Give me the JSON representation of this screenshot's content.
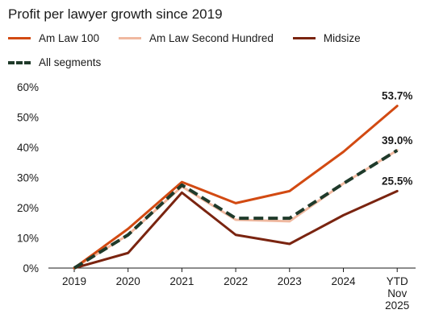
{
  "chart_data": {
    "type": "line",
    "title": "Profit per lawyer growth since 2019",
    "categories": [
      "2019",
      "2020",
      "2021",
      "2022",
      "2023",
      "2024",
      "YTD\nNov\n2025"
    ],
    "ylim": [
      0,
      60
    ],
    "yticks": [
      "0%",
      "10%",
      "20%",
      "30%",
      "40%",
      "50%",
      "60%"
    ],
    "series": [
      {
        "name": "Am Law 100",
        "values": [
          0,
          13,
          28.5,
          21.5,
          25.5,
          38.5,
          53.7
        ],
        "color": "#d24a12",
        "dash": false
      },
      {
        "name": "Am Law Second Hundred",
        "values": [
          0,
          11,
          27,
          16,
          15.5,
          28,
          39.0
        ],
        "color": "#f0b9a0",
        "dash": false
      },
      {
        "name": "Midsize",
        "values": [
          0,
          5,
          25,
          11,
          8,
          17.5,
          25.5
        ],
        "color": "#7a2410",
        "dash": false
      },
      {
        "name": "All segments",
        "values": [
          0,
          11,
          27.5,
          16.5,
          16.5,
          28,
          39.0
        ],
        "color": "#1f3a2a",
        "dash": true
      }
    ],
    "end_labels": [
      "53.7%",
      "39.0%",
      "25.5%"
    ],
    "legend_placement": "top",
    "grid": false
  }
}
